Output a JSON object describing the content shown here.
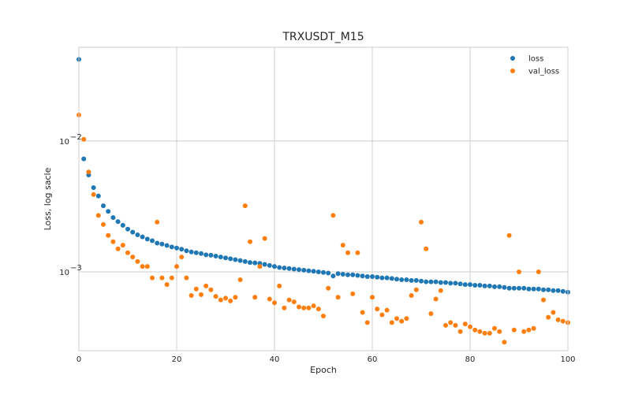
{
  "chart_data": {
    "type": "scatter",
    "title": "TRXUSDT_M15",
    "xlabel": "Epoch",
    "ylabel": "Loss, log sacle",
    "xlim": [
      0,
      100
    ],
    "ylim": [
      0.00025,
      0.052
    ],
    "yscale": "log",
    "x_ticks": [
      0,
      20,
      40,
      60,
      80,
      100
    ],
    "x_tick_labels": [
      "0",
      "20",
      "40",
      "60",
      "80",
      "100"
    ],
    "y_ticks": [
      0.01,
      0.001
    ],
    "y_tick_labels": [
      {
        "base": "10",
        "exp": "−2"
      },
      {
        "base": "10",
        "exp": "−3"
      }
    ],
    "grid": true,
    "legend_position": "top-right",
    "series": [
      {
        "name": "loss",
        "color": "#1f77b4",
        "x": [
          0,
          1,
          2,
          3,
          4,
          5,
          6,
          7,
          8,
          9,
          10,
          11,
          12,
          13,
          14,
          15,
          16,
          17,
          18,
          19,
          20,
          21,
          22,
          23,
          24,
          25,
          26,
          27,
          28,
          29,
          30,
          31,
          32,
          33,
          34,
          35,
          36,
          37,
          38,
          39,
          40,
          41,
          42,
          43,
          44,
          45,
          46,
          47,
          48,
          49,
          50,
          51,
          52,
          53,
          54,
          55,
          56,
          57,
          58,
          59,
          60,
          61,
          62,
          63,
          64,
          65,
          66,
          67,
          68,
          69,
          70,
          71,
          72,
          73,
          74,
          75,
          76,
          77,
          78,
          79,
          80,
          81,
          82,
          83,
          84,
          85,
          86,
          87,
          88,
          89,
          90,
          91,
          92,
          93,
          94,
          95,
          96,
          97,
          98,
          99,
          100
        ],
        "y": [
          0.042,
          0.0073,
          0.0055,
          0.0044,
          0.0038,
          0.0032,
          0.0029,
          0.0026,
          0.00242,
          0.00227,
          0.00212,
          0.00201,
          0.00192,
          0.00185,
          0.00178,
          0.00173,
          0.00166,
          0.00163,
          0.00159,
          0.00155,
          0.00152,
          0.00149,
          0.00145,
          0.00142,
          0.0014,
          0.00138,
          0.00135,
          0.00134,
          0.00132,
          0.0013,
          0.00128,
          0.00126,
          0.00124,
          0.00122,
          0.0012,
          0.00118,
          0.00117,
          0.00116,
          0.00114,
          0.00112,
          0.0011,
          0.00108,
          0.00107,
          0.00106,
          0.00105,
          0.00104,
          0.00103,
          0.00102,
          0.00101,
          0.001,
          0.00099,
          0.00098,
          0.00093,
          0.00097,
          0.00096,
          0.00095,
          0.00095,
          0.00094,
          0.00093,
          0.00092,
          0.00092,
          0.00091,
          0.0009,
          0.0009,
          0.00089,
          0.00088,
          0.00087,
          0.00087,
          0.00086,
          0.00086,
          0.00085,
          0.00084,
          0.00084,
          0.00084,
          0.00083,
          0.00083,
          0.00082,
          0.00082,
          0.00081,
          0.0008,
          0.0008,
          0.00079,
          0.00079,
          0.00078,
          0.00078,
          0.00077,
          0.00077,
          0.00076,
          0.00075,
          0.00075,
          0.00075,
          0.00075,
          0.00074,
          0.00074,
          0.00074,
          0.00073,
          0.00073,
          0.00072,
          0.00072,
          0.00071,
          0.0007
        ]
      },
      {
        "name": "val_loss",
        "color": "#ff7f0e",
        "x": [
          0,
          1,
          2,
          3,
          4,
          5,
          6,
          7,
          8,
          9,
          10,
          11,
          12,
          13,
          14,
          15,
          16,
          17,
          18,
          19,
          20,
          21,
          22,
          23,
          24,
          25,
          26,
          27,
          28,
          29,
          30,
          31,
          32,
          33,
          34,
          35,
          36,
          37,
          38,
          39,
          40,
          41,
          42,
          43,
          44,
          45,
          46,
          47,
          48,
          49,
          50,
          51,
          52,
          53,
          54,
          55,
          56,
          57,
          58,
          59,
          60,
          61,
          62,
          63,
          64,
          65,
          66,
          67,
          68,
          69,
          70,
          71,
          72,
          73,
          74,
          75,
          76,
          77,
          78,
          79,
          80,
          81,
          82,
          83,
          84,
          85,
          86,
          87,
          88,
          89,
          90,
          91,
          92,
          93,
          94,
          95,
          96,
          97,
          98,
          99,
          100
        ],
        "y": [
          0.0158,
          0.0103,
          0.0058,
          0.0039,
          0.0027,
          0.0023,
          0.0019,
          0.0017,
          0.0015,
          0.0016,
          0.0014,
          0.0013,
          0.0012,
          0.0011,
          0.0011,
          0.0009,
          0.0024,
          0.0009,
          0.0008,
          0.0009,
          0.0011,
          0.0013,
          0.0009,
          0.00066,
          0.00074,
          0.00067,
          0.00078,
          0.00073,
          0.00065,
          0.00061,
          0.00063,
          0.0006,
          0.00064,
          0.00087,
          0.0032,
          0.0017,
          0.00064,
          0.0011,
          0.0018,
          0.00062,
          0.00058,
          0.00078,
          0.00053,
          0.00061,
          0.00059,
          0.00054,
          0.00053,
          0.00053,
          0.00055,
          0.00052,
          0.00046,
          0.00075,
          0.0027,
          0.00064,
          0.0016,
          0.0014,
          0.00068,
          0.0014,
          0.00049,
          0.00041,
          0.00064,
          0.00052,
          0.00047,
          0.00051,
          0.00041,
          0.00044,
          0.00042,
          0.00044,
          0.00066,
          0.00073,
          0.0024,
          0.0015,
          0.00048,
          0.00062,
          0.00072,
          0.00039,
          0.00041,
          0.00039,
          0.00035,
          0.0004,
          0.00038,
          0.00036,
          0.00035,
          0.00034,
          0.00034,
          0.00037,
          0.00035,
          0.00029,
          0.0019,
          0.00036,
          0.001,
          0.00035,
          0.00036,
          0.00037,
          0.001,
          0.00061,
          0.00045,
          0.00049,
          0.00043,
          0.00042,
          0.00041
        ]
      }
    ]
  }
}
